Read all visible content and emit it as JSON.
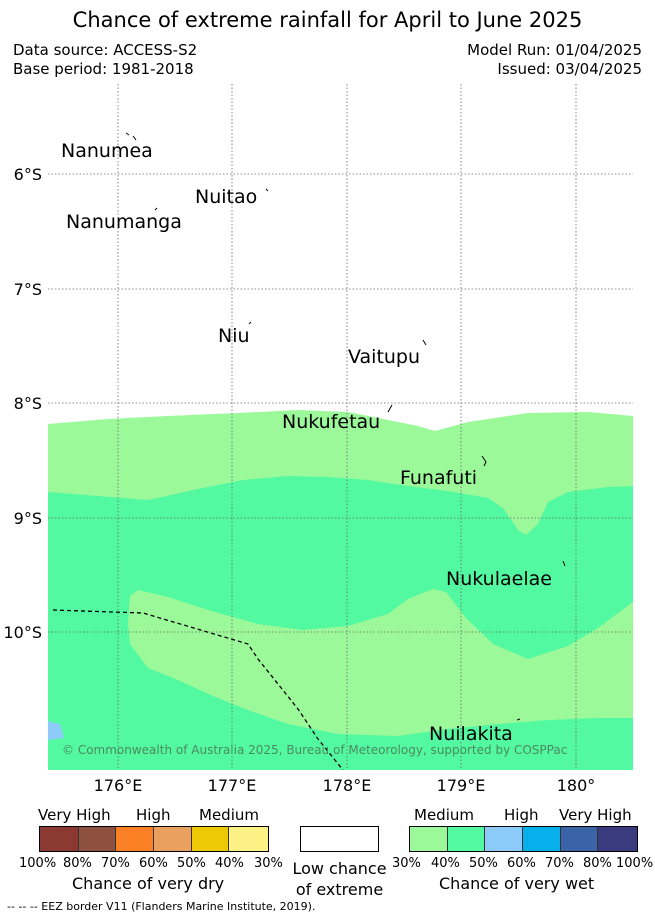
{
  "title": "Chance of extreme rainfall for April to June 2025",
  "header": {
    "data_source": "Data source: ACCESS-S2",
    "base_period": "Base period: 1981-2018",
    "model_run": "Model Run: 01/04/2025",
    "issued": "Issued: 03/04/2025"
  },
  "map": {
    "places": {
      "nanumea": "Nanumea",
      "nuitao": "Nuitao",
      "nanumanga": "Nanumanga",
      "niu": "Niu",
      "vaitupu": "Vaitupu",
      "nukufetau": "Nukufetau",
      "funafuti": "Funafuti",
      "nukulaelae": "Nukulaelae",
      "nuilakita": "Nuilakita"
    },
    "lat_labels": [
      "6°S",
      "7°S",
      "8°S",
      "9°S",
      "10°S"
    ],
    "lon_labels": [
      "176°E",
      "177°E",
      "178°E",
      "179°E",
      "180°"
    ],
    "copyright": "© Commonwealth of Australia 2025, Bureau of Meteorology, supported by COSPPac",
    "colors": {
      "medium_wet_30_40": "#9cf99a",
      "medium_wet_40_50": "#53f9a0",
      "high_wet_50_60": "#8ccbf9"
    }
  },
  "legend": {
    "dry": {
      "headings": [
        "Very High",
        "High",
        "Medium"
      ],
      "colors": [
        "#8b3a32",
        "#8e5140",
        "#fb8026",
        "#eaa05e",
        "#edc804",
        "#fbf185"
      ],
      "ticks": [
        "100%",
        "80%",
        "70%",
        "60%",
        "50%",
        "40%",
        "30%"
      ],
      "caption": "Chance of very dry"
    },
    "low": {
      "caption_line1": "Low chance",
      "caption_line2": "of extreme"
    },
    "wet": {
      "headings": [
        "Medium",
        "High",
        "Very High"
      ],
      "colors": [
        "#9cf99a",
        "#53f9a0",
        "#8ccbf9",
        "#07b0ea",
        "#3b64a8",
        "#3a3b7f"
      ],
      "ticks": [
        "30%",
        "40%",
        "50%",
        "60%",
        "70%",
        "80%",
        "100%"
      ],
      "caption": "Chance of very wet"
    }
  },
  "footer": "-- -- -- EEZ border V11 (Flanders Marine Institute, 2019)."
}
